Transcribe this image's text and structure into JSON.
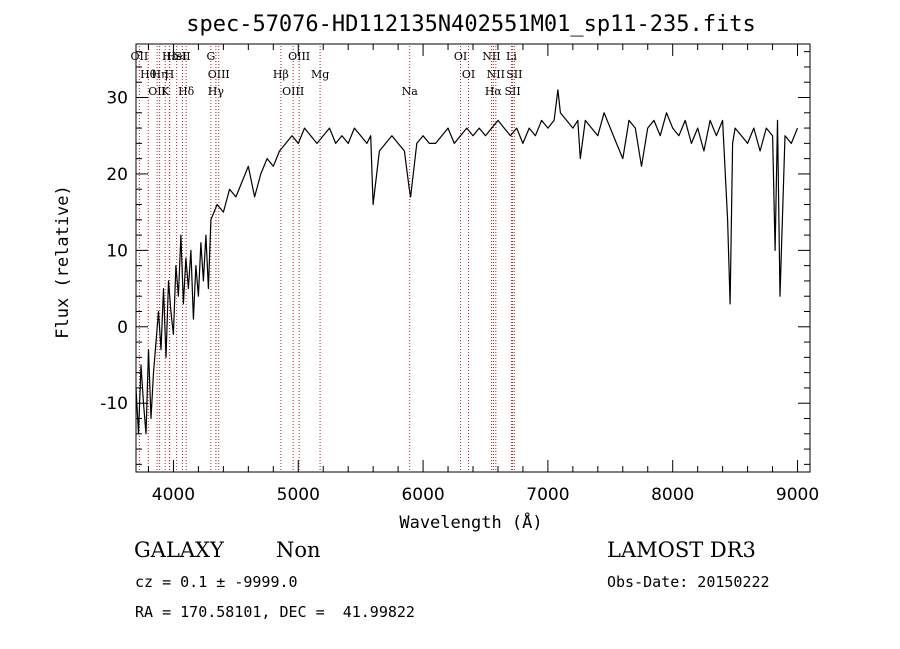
{
  "chart_data": {
    "type": "line",
    "title": "spec-57076-HD112135N402551M01_sp11-235.fits",
    "xlabel": "Wavelength (Å)",
    "ylabel": "Flux (relative)",
    "xlim": [
      3700,
      9100
    ],
    "ylim": [
      -19,
      37
    ],
    "xticks": [
      4000,
      5000,
      6000,
      7000,
      8000,
      9000
    ],
    "yticks": [
      -10,
      0,
      10,
      20,
      30
    ],
    "grid": false,
    "series": [
      {
        "name": "spectrum",
        "x": [
          3700,
          3720,
          3740,
          3760,
          3780,
          3800,
          3820,
          3840,
          3860,
          3880,
          3900,
          3920,
          3940,
          3960,
          3980,
          4000,
          4020,
          4040,
          4060,
          4080,
          4100,
          4120,
          4140,
          4160,
          4180,
          4200,
          4220,
          4240,
          4260,
          4280,
          4300,
          4350,
          4400,
          4450,
          4500,
          4550,
          4600,
          4650,
          4700,
          4750,
          4800,
          4850,
          4900,
          4950,
          5000,
          5050,
          5100,
          5150,
          5200,
          5250,
          5300,
          5350,
          5400,
          5450,
          5500,
          5550,
          5580,
          5600,
          5650,
          5700,
          5750,
          5800,
          5850,
          5890,
          5900,
          5950,
          6000,
          6050,
          6100,
          6150,
          6200,
          6250,
          6300,
          6350,
          6400,
          6450,
          6500,
          6550,
          6600,
          6650,
          6700,
          6750,
          6800,
          6850,
          6900,
          6950,
          7000,
          7050,
          7080,
          7100,
          7150,
          7200,
          7240,
          7260,
          7300,
          7350,
          7400,
          7450,
          7500,
          7550,
          7600,
          7650,
          7700,
          7750,
          7800,
          7850,
          7900,
          7950,
          8000,
          8050,
          8100,
          8150,
          8200,
          8250,
          8300,
          8350,
          8400,
          8440,
          8460,
          8480,
          8500,
          8550,
          8600,
          8650,
          8700,
          8750,
          8800,
          8820,
          8840,
          8860,
          8900,
          8950,
          9000
        ],
        "values": [
          -8,
          -14,
          -5,
          -10,
          -14,
          -3,
          -12,
          -6,
          -2,
          2,
          -3,
          5,
          -4,
          6,
          2,
          -1,
          8,
          4,
          12,
          3,
          9,
          5,
          10,
          1,
          8,
          4,
          11,
          6,
          12,
          5,
          14,
          16,
          15,
          18,
          17,
          19,
          21,
          17,
          20,
          22,
          21,
          23,
          24,
          25,
          24,
          26,
          25,
          24,
          25,
          26,
          24,
          25,
          24,
          26,
          25,
          24,
          25,
          16,
          23,
          24,
          25,
          24,
          23,
          18,
          17,
          24,
          25,
          24,
          24,
          25,
          26,
          24,
          25,
          26,
          25,
          26,
          25,
          26,
          27,
          26,
          25,
          26,
          24,
          26,
          25,
          27,
          26,
          27,
          31,
          28,
          27,
          26,
          27,
          22,
          27,
          26,
          25,
          28,
          26,
          24,
          22,
          27,
          26,
          21,
          26,
          27,
          25,
          28,
          26,
          25,
          27,
          24,
          26,
          23,
          27,
          25,
          27,
          14,
          3,
          24,
          26,
          25,
          24,
          26,
          23,
          26,
          25,
          10,
          27,
          4,
          25,
          24,
          26
        ]
      }
    ],
    "spectral_lines": [
      {
        "label": "OII",
        "x": 3727
      },
      {
        "label": "Hθ",
        "x": 3798
      },
      {
        "label": "OII",
        "x": 3869
      },
      {
        "label": "Hε",
        "x": 3970
      },
      {
        "label": "Hη",
        "x": 3889
      },
      {
        "label": "K",
        "x": 3934
      },
      {
        "label": "HeI",
        "x": 4026
      },
      {
        "label": "H",
        "x": 3968
      },
      {
        "label": "Hδ",
        "x": 4102
      },
      {
        "label": "SII",
        "x": 4072
      },
      {
        "label": "OIII",
        "x": 4363
      },
      {
        "label": "Hγ",
        "x": 4340
      },
      {
        "label": "G",
        "x": 4300
      },
      {
        "label": "Hβ",
        "x": 4861
      },
      {
        "label": "OIII",
        "x": 4959
      },
      {
        "label": "OIII",
        "x": 5007
      },
      {
        "label": "Mg",
        "x": 5175
      },
      {
        "label": "Na",
        "x": 5893
      },
      {
        "label": "OI",
        "x": 6300
      },
      {
        "label": "OI",
        "x": 6364
      },
      {
        "label": "Hα",
        "x": 6563
      },
      {
        "label": "NII",
        "x": 6548
      },
      {
        "label": "NII",
        "x": 6583
      },
      {
        "label": "SII",
        "x": 6717
      },
      {
        "label": "Li",
        "x": 6708
      },
      {
        "label": "SII",
        "x": 6731
      }
    ]
  },
  "info": {
    "class_label": "GALAXY",
    "subclass_label": "Non",
    "survey_label": "LAMOST DR3",
    "cz_text": "cz = 0.1 ± -9999.0",
    "obs_date_text": "Obs-Date: 20150222",
    "radec_text": "RA = 170.58101, DEC =  41.99822"
  }
}
